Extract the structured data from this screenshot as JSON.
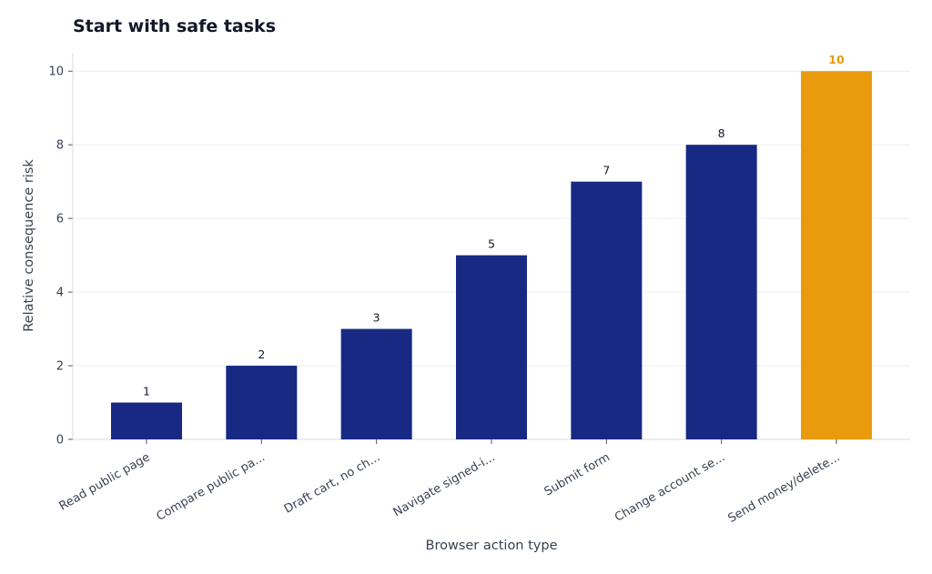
{
  "chart_data": {
    "type": "bar",
    "title": "Start with safe tasks",
    "xlabel": "Browser action type",
    "ylabel": "Relative consequence risk",
    "categories": [
      "Read public page",
      "Compare public pa...",
      "Draft cart, no ch...",
      "Navigate signed-i...",
      "Submit form",
      "Change account se...",
      "Send money/delete..."
    ],
    "values": [
      1,
      2,
      3,
      5,
      7,
      8,
      10
    ],
    "ylim": [
      0,
      10.5
    ],
    "yticks": [
      0,
      2,
      4,
      6,
      8,
      10
    ],
    "highlight_index": 6,
    "colors": {
      "bar": "#172983",
      "highlight": "#e99b0d",
      "grid": "#eeeeee",
      "axis": "#d9d9d9"
    },
    "grid": true,
    "legend": "none"
  }
}
